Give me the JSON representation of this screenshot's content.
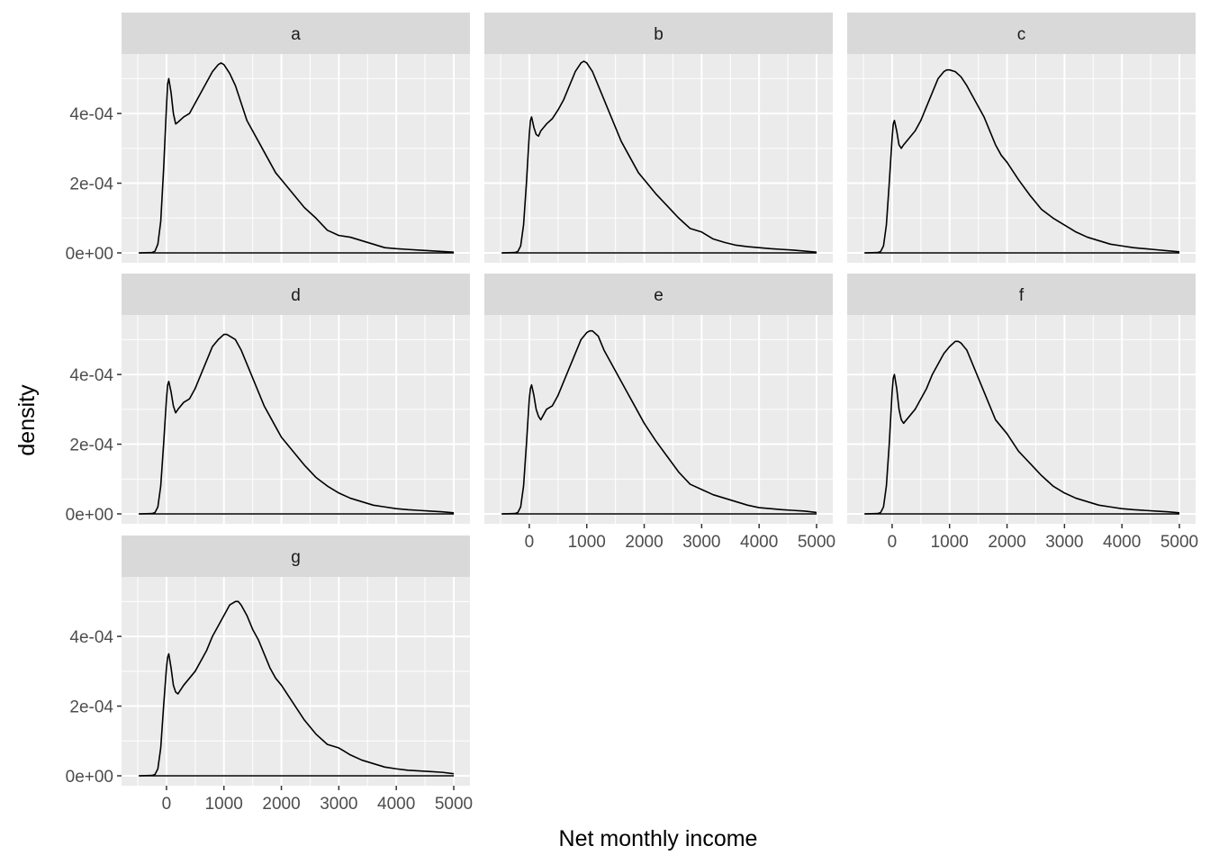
{
  "chart_data": {
    "type": "line",
    "xlabel": "Net monthly income",
    "ylabel": "density",
    "xlim": [
      -500,
      5000
    ],
    "ylim": [
      0,
      0.00055
    ],
    "x_ticks": [
      0,
      1000,
      2000,
      3000,
      4000,
      5000
    ],
    "x_tick_labels": [
      "0",
      "1000",
      "2000",
      "3000",
      "4000",
      "5000"
    ],
    "y_ticks": [
      0,
      0.0002,
      0.0004
    ],
    "y_tick_labels": [
      "0e+00",
      "2e-04",
      "4e-04"
    ],
    "grid": true,
    "colors": {
      "panel": "#ebebeb",
      "strip": "#d9d9d9",
      "grid": "#ffffff",
      "line": "#000000"
    },
    "facets": [
      {
        "label": "a",
        "x": [
          -480,
          -250,
          -200,
          -150,
          -100,
          -50,
          0,
          20,
          40,
          80,
          120,
          160,
          200,
          300,
          400,
          500,
          600,
          700,
          800,
          900,
          950,
          1000,
          1100,
          1200,
          1300,
          1400,
          1500,
          1600,
          1700,
          1800,
          1900,
          2000,
          2200,
          2400,
          2600,
          2800,
          3000,
          3200,
          3400,
          3600,
          3800,
          4000,
          4200,
          4400,
          4600,
          4800,
          5000
        ],
        "y": [
          0,
          1e-06,
          5e-06,
          2.5e-05,
          9e-05,
          0.00024,
          0.00042,
          0.000485,
          0.0005,
          0.00046,
          0.0004,
          0.00037,
          0.000375,
          0.00039,
          0.0004,
          0.00043,
          0.00046,
          0.00049,
          0.00052,
          0.00054,
          0.000545,
          0.00054,
          0.000515,
          0.00048,
          0.00043,
          0.00038,
          0.00035,
          0.00032,
          0.00029,
          0.00026,
          0.00023,
          0.00021,
          0.00017,
          0.00013,
          0.0001,
          6.5e-05,
          5e-05,
          4.5e-05,
          3.5e-05,
          2.5e-05,
          1.5e-05,
          1.2e-05,
          1e-05,
          8e-06,
          6e-06,
          4e-06,
          2e-06
        ]
      },
      {
        "label": "b",
        "x": [
          -480,
          -250,
          -200,
          -150,
          -100,
          -50,
          0,
          20,
          40,
          80,
          120,
          160,
          200,
          300,
          400,
          500,
          600,
          700,
          800,
          900,
          950,
          1000,
          1100,
          1200,
          1300,
          1400,
          1500,
          1600,
          1700,
          1800,
          1900,
          2000,
          2200,
          2400,
          2600,
          2800,
          3000,
          3200,
          3400,
          3600,
          3800,
          4000,
          4200,
          4400,
          4600,
          4800,
          5000
        ],
        "y": [
          0,
          1e-06,
          4e-06,
          2e-05,
          8e-05,
          0.0002,
          0.00034,
          0.00038,
          0.00039,
          0.00036,
          0.00034,
          0.000335,
          0.00035,
          0.00037,
          0.000385,
          0.00041,
          0.00044,
          0.00048,
          0.00052,
          0.000545,
          0.00055,
          0.000545,
          0.00052,
          0.00048,
          0.00044,
          0.0004,
          0.00036,
          0.00032,
          0.00029,
          0.00026,
          0.00023,
          0.00021,
          0.00017,
          0.000135,
          0.0001,
          7e-05,
          6e-05,
          4e-05,
          3e-05,
          2.2e-05,
          1.8e-05,
          1.5e-05,
          1.2e-05,
          1e-05,
          8e-06,
          5e-06,
          2e-06
        ]
      },
      {
        "label": "c",
        "x": [
          -480,
          -250,
          -200,
          -150,
          -100,
          -50,
          0,
          20,
          40,
          80,
          120,
          160,
          200,
          300,
          400,
          500,
          600,
          700,
          800,
          900,
          950,
          1000,
          1100,
          1200,
          1300,
          1400,
          1500,
          1600,
          1700,
          1800,
          1900,
          2000,
          2200,
          2400,
          2600,
          2800,
          3000,
          3200,
          3400,
          3600,
          3800,
          4000,
          4200,
          4400,
          4600,
          4800,
          5000
        ],
        "y": [
          0,
          1e-06,
          4e-06,
          2e-05,
          8e-05,
          0.0002,
          0.00033,
          0.00037,
          0.00038,
          0.00035,
          0.00031,
          0.0003,
          0.00031,
          0.00033,
          0.00035,
          0.00038,
          0.00042,
          0.00046,
          0.0005,
          0.00052,
          0.000525,
          0.000525,
          0.00052,
          0.000505,
          0.00048,
          0.00045,
          0.00042,
          0.00039,
          0.00035,
          0.00031,
          0.00028,
          0.00026,
          0.00021,
          0.000165,
          0.000125,
          0.0001,
          8e-05,
          6e-05,
          4.5e-05,
          3.5e-05,
          2.5e-05,
          2e-05,
          1.5e-05,
          1.2e-05,
          9e-06,
          6e-06,
          3e-06
        ]
      },
      {
        "label": "d",
        "x": [
          -480,
          -250,
          -200,
          -150,
          -100,
          -50,
          0,
          20,
          40,
          80,
          120,
          160,
          200,
          300,
          400,
          500,
          600,
          700,
          800,
          900,
          1000,
          1050,
          1100,
          1200,
          1300,
          1400,
          1500,
          1600,
          1700,
          1800,
          1900,
          2000,
          2200,
          2400,
          2600,
          2800,
          3000,
          3200,
          3400,
          3600,
          3800,
          4000,
          4200,
          4400,
          4600,
          4800,
          5000
        ],
        "y": [
          0,
          1e-06,
          4e-06,
          2e-05,
          8e-05,
          0.0002,
          0.00033,
          0.00037,
          0.00038,
          0.00035,
          0.00031,
          0.00029,
          0.0003,
          0.00032,
          0.00033,
          0.00036,
          0.0004,
          0.00044,
          0.00048,
          0.0005,
          0.000515,
          0.000515,
          0.00051,
          0.0005,
          0.00047,
          0.00043,
          0.00039,
          0.00035,
          0.00031,
          0.00028,
          0.00025,
          0.00022,
          0.00018,
          0.00014,
          0.000105,
          8e-05,
          6e-05,
          4.5e-05,
          3.5e-05,
          2.5e-05,
          2e-05,
          1.5e-05,
          1.2e-05,
          1e-05,
          8e-06,
          6e-06,
          3e-06
        ]
      },
      {
        "label": "e",
        "x": [
          -480,
          -250,
          -200,
          -150,
          -100,
          -50,
          0,
          20,
          40,
          80,
          120,
          160,
          200,
          300,
          400,
          500,
          600,
          700,
          800,
          900,
          1000,
          1050,
          1100,
          1200,
          1300,
          1400,
          1500,
          1600,
          1700,
          1800,
          1900,
          2000,
          2200,
          2400,
          2600,
          2800,
          3000,
          3200,
          3400,
          3600,
          3800,
          4000,
          4200,
          4400,
          4600,
          4800,
          5000
        ],
        "y": [
          0,
          1e-06,
          4e-06,
          2e-05,
          8e-05,
          0.0002,
          0.00033,
          0.00036,
          0.00037,
          0.00034,
          0.0003,
          0.00028,
          0.00027,
          0.0003,
          0.00031,
          0.00034,
          0.00038,
          0.00042,
          0.00046,
          0.0005,
          0.00052,
          0.000525,
          0.000525,
          0.00051,
          0.00047,
          0.00044,
          0.00041,
          0.00038,
          0.00035,
          0.00032,
          0.00029,
          0.00026,
          0.00021,
          0.000165,
          0.00012,
          8.5e-05,
          7e-05,
          5.5e-05,
          4.5e-05,
          3.5e-05,
          2.5e-05,
          1.8e-05,
          1.5e-05,
          1.2e-05,
          1e-05,
          8e-06,
          4e-06
        ]
      },
      {
        "label": "f",
        "x": [
          -480,
          -250,
          -200,
          -150,
          -100,
          -50,
          0,
          20,
          40,
          80,
          120,
          160,
          200,
          300,
          400,
          500,
          600,
          700,
          800,
          900,
          1000,
          1100,
          1150,
          1200,
          1300,
          1400,
          1500,
          1600,
          1700,
          1800,
          1900,
          2000,
          2200,
          2400,
          2600,
          2800,
          3000,
          3200,
          3400,
          3600,
          3800,
          4000,
          4200,
          4400,
          4600,
          4800,
          5000
        ],
        "y": [
          0,
          1e-06,
          4e-06,
          2e-05,
          8e-05,
          0.0002,
          0.00035,
          0.00039,
          0.0004,
          0.00036,
          0.0003,
          0.00027,
          0.00026,
          0.00028,
          0.0003,
          0.00033,
          0.00036,
          0.0004,
          0.00043,
          0.00046,
          0.00048,
          0.000495,
          0.000495,
          0.00049,
          0.00047,
          0.00043,
          0.00039,
          0.00035,
          0.00031,
          0.00027,
          0.00025,
          0.00023,
          0.00018,
          0.000145,
          0.00011,
          8e-05,
          6e-05,
          4.5e-05,
          3.5e-05,
          2.5e-05,
          2e-05,
          1.5e-05,
          1.2e-05,
          1e-05,
          8e-06,
          6e-06,
          3e-06
        ]
      },
      {
        "label": "g",
        "x": [
          -480,
          -250,
          -200,
          -150,
          -100,
          -50,
          0,
          20,
          40,
          80,
          120,
          160,
          200,
          300,
          400,
          500,
          600,
          700,
          800,
          900,
          1000,
          1100,
          1200,
          1250,
          1300,
          1400,
          1500,
          1600,
          1700,
          1800,
          1900,
          2000,
          2200,
          2400,
          2600,
          2800,
          3000,
          3200,
          3400,
          3600,
          3800,
          4000,
          4200,
          4400,
          4600,
          4800,
          5000
        ],
        "y": [
          0,
          1e-06,
          4e-06,
          2e-05,
          8e-05,
          0.0002,
          0.00031,
          0.00034,
          0.00035,
          0.00031,
          0.00026,
          0.00024,
          0.000235,
          0.00026,
          0.00028,
          0.0003,
          0.00033,
          0.00036,
          0.0004,
          0.00043,
          0.00046,
          0.00049,
          0.0005,
          0.0005,
          0.00049,
          0.00046,
          0.00042,
          0.00039,
          0.00035,
          0.00031,
          0.00028,
          0.00026,
          0.00021,
          0.00016,
          0.00012,
          9e-05,
          8e-05,
          6e-05,
          4.5e-05,
          3.5e-05,
          2.5e-05,
          2e-05,
          1.6e-05,
          1.4e-05,
          1.2e-05,
          1e-05,
          6e-06
        ]
      }
    ]
  }
}
